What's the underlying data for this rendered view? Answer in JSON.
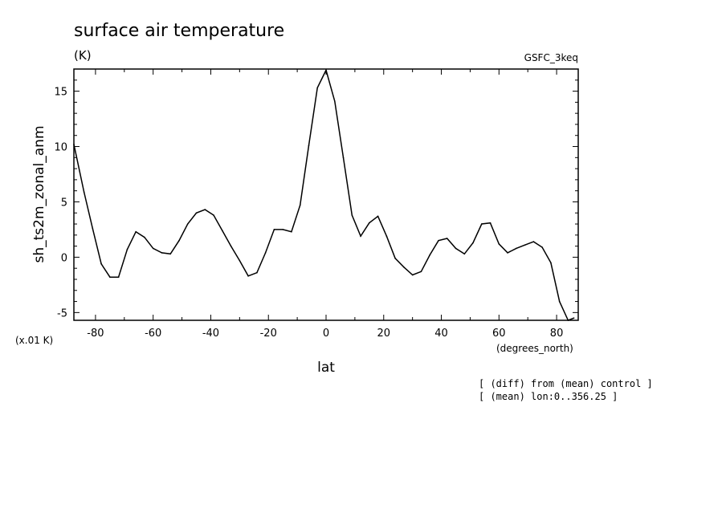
{
  "chart_data": {
    "type": "line",
    "title": "surface air temperature",
    "units": "(K)",
    "model": "GSFC_3keq",
    "ylabel": "sh_ts2m_zonal_anm",
    "xlabel": "lat",
    "x_units": "(degrees_north)",
    "y_scale_note": "(x.01 K)",
    "xlim": [
      -87.5,
      87.5
    ],
    "ylim": [
      -5.7,
      17
    ],
    "x_ticks": [
      -80,
      -60,
      -40,
      -20,
      0,
      20,
      40,
      60,
      80
    ],
    "y_ticks": [
      -5,
      0,
      5,
      10,
      15
    ],
    "notes": [
      "[ (diff) from (mean) control ]",
      "[ (mean) lon:0..356.25 ]"
    ],
    "series": [
      {
        "x": [
          -87.5,
          -84,
          -81,
          -78,
          -75,
          -72,
          -69,
          -66,
          -63,
          -60,
          -57,
          -54,
          -51,
          -48,
          -45,
          -42,
          -39,
          -36,
          -33,
          -30,
          -27,
          -24,
          -21,
          -18,
          -15,
          -12,
          -9,
          -6,
          -3,
          0,
          3,
          6,
          9,
          12,
          15,
          18,
          21,
          24,
          27,
          30,
          33,
          36,
          39,
          42,
          45,
          48,
          51,
          54,
          57,
          60,
          63,
          66,
          69,
          72,
          75,
          78,
          81,
          84,
          86
        ],
        "values": [
          10.2,
          5.9,
          2.6,
          -0.6,
          -1.8,
          -1.8,
          0.7,
          2.3,
          1.8,
          0.8,
          0.4,
          0.3,
          1.5,
          3.0,
          4.0,
          4.3,
          3.8,
          2.4,
          1.0,
          -0.3,
          -1.7,
          -1.4,
          0.4,
          2.5,
          2.5,
          2.3,
          4.7,
          10.1,
          15.3,
          16.9,
          14.1,
          9.0,
          3.8,
          1.9,
          3.1,
          3.7,
          1.9,
          -0.1,
          -0.9,
          -1.6,
          -1.3,
          0.2,
          1.5,
          1.7,
          0.8,
          0.3,
          1.3,
          3.0,
          3.1,
          1.2,
          0.4,
          0.8,
          1.1,
          1.4,
          0.9,
          -0.5,
          -4.0,
          -5.7,
          -5.5
        ]
      }
    ]
  }
}
